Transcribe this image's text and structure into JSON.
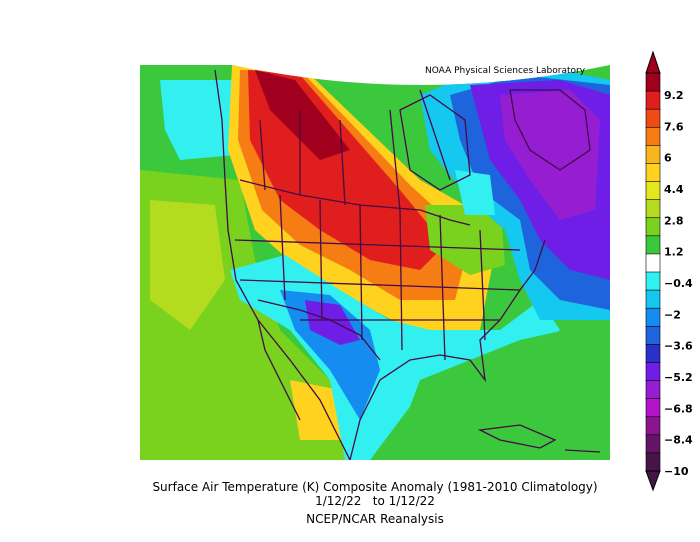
{
  "credit": "NOAA Physical Sciences Laboratory",
  "title": "Surface Air Temperature (K) Composite Anomaly (1981-2010 Climatology)",
  "date_range": "1/12/22   to 1/12/22",
  "source": "NCEP/NCAR Reanalysis",
  "colorbar": {
    "labels": [
      "9.2",
      "7.6",
      "6",
      "4.4",
      "2.8",
      "1.2",
      "-0.4",
      "-2",
      "-3.6",
      "-5.2",
      "-6.8",
      "-8.4",
      "-10"
    ],
    "colors": [
      "#a0001e",
      "#e11e1e",
      "#f04b14",
      "#f57d14",
      "#fab41e",
      "#ffd21e",
      "#e6e61e",
      "#b4dc1e",
      "#78d21e",
      "#3cc83c",
      "#ffffff",
      "#32f0f0",
      "#14c8f0",
      "#148cf0",
      "#1e64dc",
      "#2832c8",
      "#6e1ee6",
      "#961ed2",
      "#b414c8",
      "#8c1490",
      "#641464",
      "#461446"
    ],
    "top_arrow_color": "#a0001e",
    "bottom_arrow_color": "#461446"
  },
  "map_colors": {
    "green": "#3cc83c",
    "light_green": "#78d21e",
    "yellow_green": "#b4dc1e",
    "cyan": "#32f0f0",
    "light_blue": "#14c8f0",
    "blue": "#148cf0",
    "deep_blue": "#1e64dc",
    "violet": "#6e1ee6",
    "purple": "#961ed2",
    "dark_red": "#a0001e",
    "red": "#e11e1e",
    "orange": "#f57d14",
    "yellow": "#ffd21e",
    "boundary": "#460a46"
  }
}
